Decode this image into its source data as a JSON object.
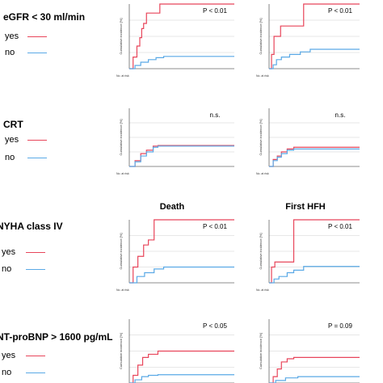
{
  "colors": {
    "yes": "#e8455a",
    "no": "#5aa9e6",
    "grid": "#cfcfcf",
    "axis": "#666666"
  },
  "column_headers": [
    "Death",
    "First HFH"
  ],
  "legend": {
    "yes": "yes",
    "no": "no"
  },
  "rows": [
    {
      "label": "eGFR < 30 ml/min",
      "p_values": [
        "P < 0.01",
        "P < 0.01"
      ]
    },
    {
      "label": "CRT",
      "p_values": [
        "n.s.",
        "n.s."
      ]
    },
    {
      "label": "NYHA class IV",
      "p_values": [
        "P < 0.01",
        "P < 0.01"
      ]
    },
    {
      "label": "NT-proBNP > 1600 pg/mL",
      "p_values": [
        "P < 0.05",
        "P = 0.09"
      ]
    }
  ],
  "chart_data": [
    {
      "type": "line",
      "title": "",
      "ylabel": "Cumulative incidence [%]",
      "xlabel": "No. at risk",
      "ylim": [
        0,
        100
      ],
      "grid": true,
      "series": [
        {
          "name": "yes",
          "x": [
            0,
            40,
            80,
            110,
            130,
            150,
            180,
            300,
            320,
            1100
          ],
          "y": [
            0,
            18,
            35,
            48,
            62,
            70,
            86,
            86,
            100,
            100
          ]
        },
        {
          "name": "no",
          "x": [
            0,
            60,
            120,
            200,
            280,
            360,
            1100
          ],
          "y": [
            0,
            5,
            10,
            14,
            17,
            19,
            19
          ]
        }
      ]
    },
    {
      "type": "line",
      "title": "",
      "ylabel": "Cumulative incidence [%]",
      "xlabel": "No. at risk",
      "ylim": [
        0,
        100
      ],
      "grid": true,
      "series": [
        {
          "name": "yes",
          "x": [
            0,
            30,
            60,
            100,
            140,
            200,
            400,
            420,
            1100
          ],
          "y": [
            0,
            22,
            50,
            50,
            66,
            66,
            66,
            100,
            100
          ]
        },
        {
          "name": "no",
          "x": [
            0,
            50,
            90,
            150,
            250,
            380,
            500,
            1100
          ],
          "y": [
            0,
            6,
            14,
            18,
            22,
            26,
            30,
            30
          ]
        }
      ]
    },
    {
      "type": "line",
      "title": "",
      "ylabel": "Cumulative incidence [%]",
      "xlabel": "No. at risk",
      "ylim": [
        0,
        100
      ],
      "grid": true,
      "series": [
        {
          "name": "yes",
          "x": [
            0,
            60,
            120,
            180,
            250,
            300,
            1100
          ],
          "y": [
            0,
            10,
            22,
            28,
            35,
            36,
            36
          ]
        },
        {
          "name": "no",
          "x": [
            0,
            60,
            120,
            180,
            250,
            300,
            1100
          ],
          "y": [
            0,
            8,
            18,
            25,
            33,
            35,
            35
          ]
        }
      ]
    },
    {
      "type": "line",
      "title": "",
      "ylabel": "Cumulative incidence [%]",
      "xlabel": "No. at risk",
      "ylim": [
        0,
        100
      ],
      "grid": true,
      "series": [
        {
          "name": "yes",
          "x": [
            0,
            50,
            100,
            150,
            220,
            300,
            1100
          ],
          "y": [
            0,
            12,
            18,
            25,
            30,
            33,
            33
          ]
        },
        {
          "name": "no",
          "x": [
            0,
            50,
            100,
            150,
            220,
            300,
            1100
          ],
          "y": [
            0,
            10,
            16,
            22,
            28,
            30,
            30
          ]
        }
      ]
    },
    {
      "type": "line",
      "title": "",
      "ylabel": "Cumulative incidence [%]",
      "xlabel": "No. at risk",
      "ylim": [
        0,
        100
      ],
      "grid": true,
      "series": [
        {
          "name": "yes",
          "x": [
            0,
            40,
            90,
            150,
            200,
            260,
            1100
          ],
          "y": [
            0,
            25,
            42,
            60,
            68,
            100,
            100
          ]
        },
        {
          "name": "no",
          "x": [
            0,
            80,
            160,
            260,
            360,
            500,
            1100
          ],
          "y": [
            0,
            10,
            16,
            22,
            25,
            25,
            25
          ]
        }
      ]
    },
    {
      "type": "line",
      "title": "",
      "ylabel": "Cumulative incidence [%]",
      "xlabel": "No. at risk",
      "ylim": [
        0,
        100
      ],
      "grid": true,
      "series": [
        {
          "name": "yes",
          "x": [
            0,
            30,
            70,
            200,
            300,
            1100
          ],
          "y": [
            0,
            25,
            33,
            33,
            100,
            100
          ]
        },
        {
          "name": "no",
          "x": [
            0,
            60,
            120,
            220,
            300,
            420,
            1100
          ],
          "y": [
            0,
            6,
            10,
            16,
            20,
            26,
            26
          ]
        }
      ]
    },
    {
      "type": "line",
      "title": "",
      "ylabel": "Cumulative incidence [%]",
      "xlabel": "No. at risk",
      "ylim": [
        0,
        100
      ],
      "grid": true,
      "series": [
        {
          "name": "yes",
          "x": [
            0,
            40,
            90,
            140,
            200,
            300,
            1100
          ],
          "y": [
            0,
            12,
            28,
            40,
            45,
            50,
            50
          ]
        },
        {
          "name": "no",
          "x": [
            0,
            60,
            130,
            200,
            300,
            1100
          ],
          "y": [
            0,
            5,
            10,
            12,
            13,
            13
          ]
        }
      ]
    },
    {
      "type": "line",
      "title": "",
      "ylabel": "Cumulative incidence [%]",
      "xlabel": "No. at risk",
      "ylim": [
        0,
        100
      ],
      "grid": true,
      "series": [
        {
          "name": "yes",
          "x": [
            0,
            50,
            100,
            150,
            220,
            300,
            1100
          ],
          "y": [
            0,
            10,
            22,
            33,
            38,
            40,
            40
          ]
        },
        {
          "name": "no",
          "x": [
            0,
            80,
            200,
            350,
            1100
          ],
          "y": [
            0,
            4,
            8,
            10,
            10
          ]
        }
      ]
    }
  ]
}
